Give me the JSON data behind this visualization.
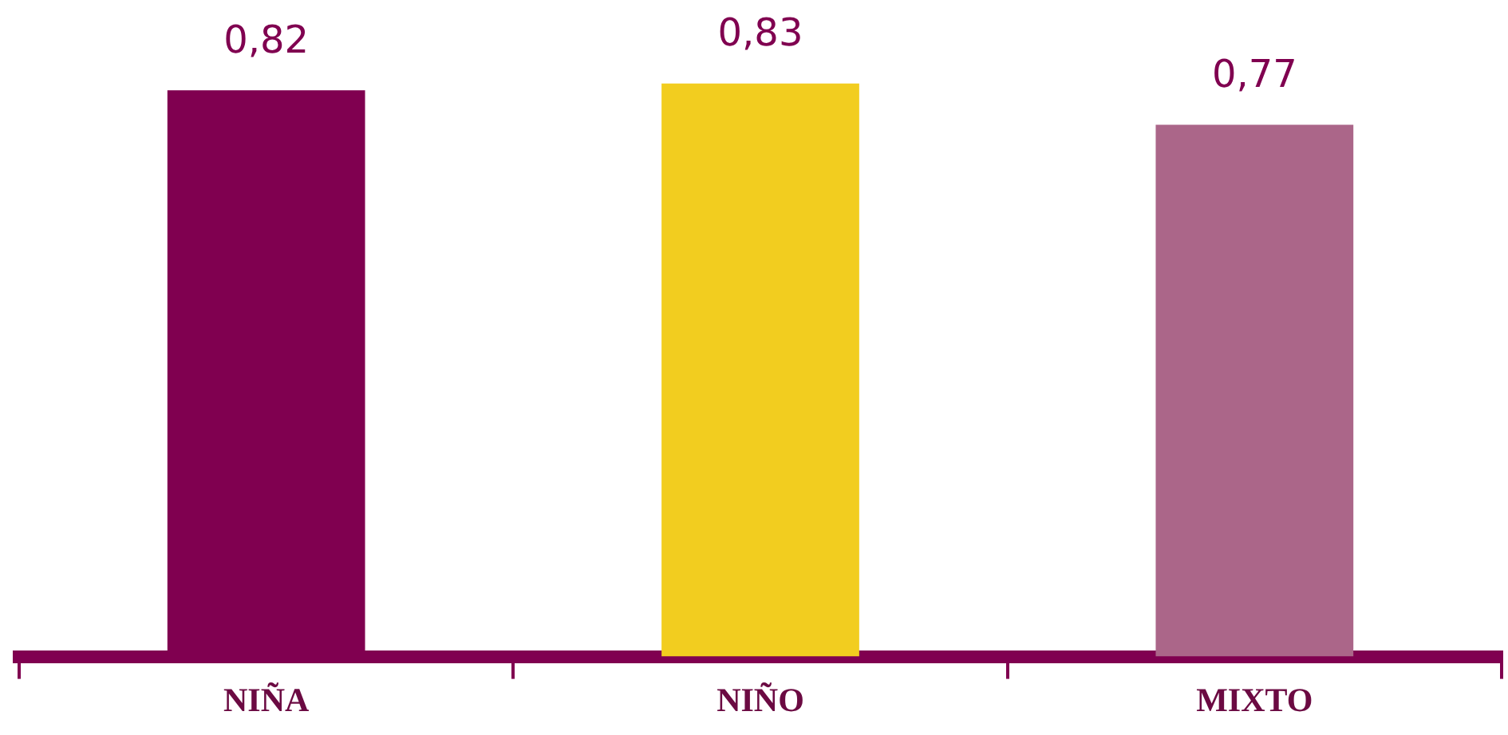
{
  "chart_data": {
    "type": "bar",
    "categories": [
      "NIÑA",
      "NIÑO",
      "MIXTO"
    ],
    "values": [
      0.82,
      0.83,
      0.77
    ],
    "colors": [
      "#800050",
      "#f2cd1f",
      "#ab6689"
    ],
    "value_labels": [
      "0,82",
      "0,83",
      "0,77"
    ],
    "grid": false,
    "legend": false
  }
}
